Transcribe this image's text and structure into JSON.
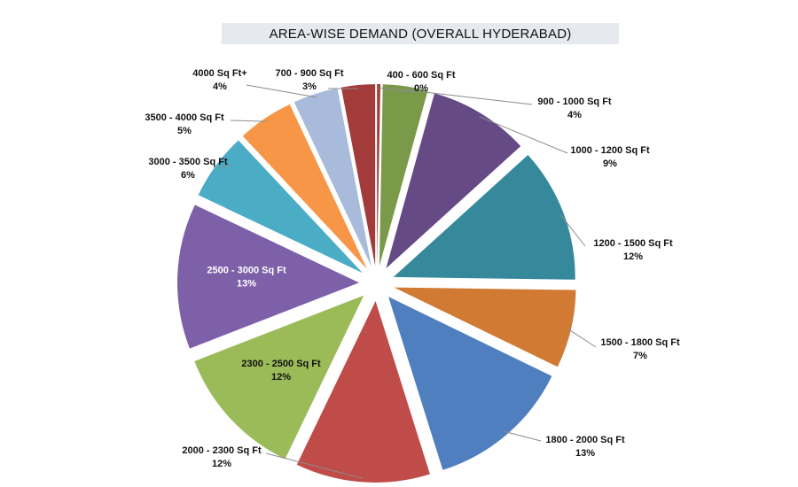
{
  "chart_data": {
    "type": "pie",
    "title": "AREA-WISE DEMAND (OVERALL HYDERABAD)",
    "exploded": true,
    "legend": "none",
    "slices": [
      {
        "label": "400 - 600 Sq Ft",
        "value": 0.3,
        "pct_label": "0%",
        "color": "#a33b3b",
        "placement": "outside"
      },
      {
        "label": "900 - 1000 Sq Ft",
        "value": 4,
        "pct_label": "4%",
        "color": "#7a9a4a",
        "placement": "outside"
      },
      {
        "label": "1000 - 1200 Sq Ft",
        "value": 9,
        "pct_label": "9%",
        "color": "#654a86",
        "placement": "outside"
      },
      {
        "label": "1200 - 1500 Sq Ft",
        "value": 12,
        "pct_label": "12%",
        "color": "#35899b",
        "placement": "outside"
      },
      {
        "label": "1500 - 1800 Sq Ft",
        "value": 7,
        "pct_label": "7%",
        "color": "#d07a34",
        "placement": "outside"
      },
      {
        "label": "1800 - 2000 Sq Ft",
        "value": 13,
        "pct_label": "13%",
        "color": "#4f7fbe",
        "placement": "outside"
      },
      {
        "label": "2000 - 2300 Sq Ft",
        "value": 12,
        "pct_label": "12%",
        "color": "#c04c4a",
        "placement": "outside"
      },
      {
        "label": "2300 - 2500 Sq Ft",
        "value": 12,
        "pct_label": "12%",
        "color": "#9bbb59",
        "placement": "inside"
      },
      {
        "label": "2500 - 3000 Sq Ft",
        "value": 13,
        "pct_label": "13%",
        "color": "#7d60a8",
        "placement": "inside"
      },
      {
        "label": "3000 - 3500 Sq Ft",
        "value": 6,
        "pct_label": "6%",
        "color": "#4bacc6",
        "placement": "outside"
      },
      {
        "label": "3500 - 4000 Sq Ft",
        "value": 5,
        "pct_label": "5%",
        "color": "#f79646",
        "placement": "outside"
      },
      {
        "label": "4000 Sq Ft+",
        "value": 4,
        "pct_label": "4%",
        "color": "#a9bbdb",
        "placement": "outside"
      },
      {
        "label": "700 - 900 Sq Ft",
        "value": 3,
        "pct_label": "3%",
        "color": "#a33b3b",
        "placement": "outside"
      }
    ]
  }
}
